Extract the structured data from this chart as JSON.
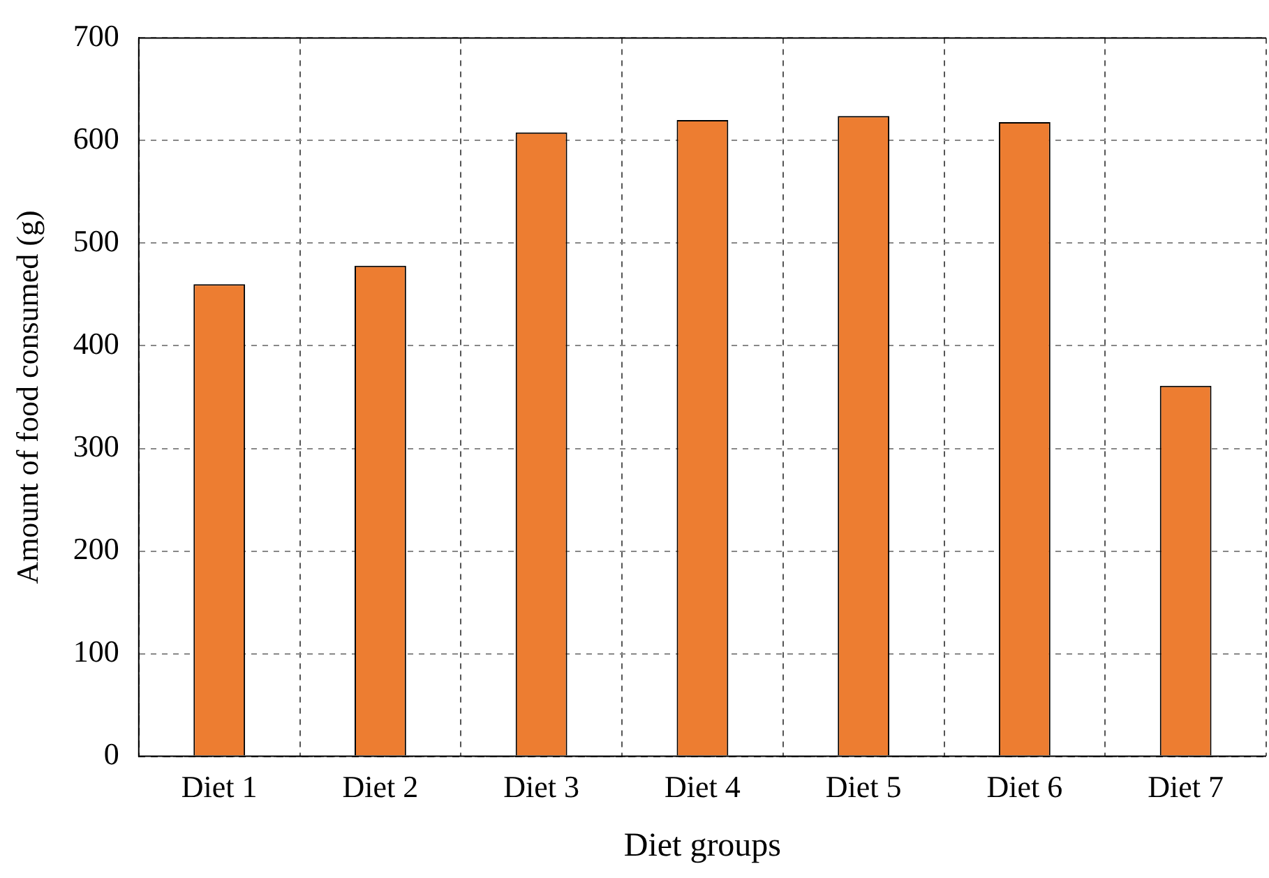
{
  "chart_data": {
    "type": "bar",
    "xlabel": "Diet groups",
    "ylabel": "Amount of food consumed (g)",
    "categories": [
      "Diet 1",
      "Diet 2",
      "Diet 3",
      "Diet 4",
      "Diet 5",
      "Diet 6",
      "Diet 7"
    ],
    "values": [
      460,
      478,
      608,
      620,
      624,
      618,
      361
    ],
    "color": "#ed7d31",
    "ylim": [
      0,
      700
    ],
    "yticks": [
      0,
      100,
      200,
      300,
      400,
      500,
      600,
      700
    ],
    "grid": true,
    "legend": false
  }
}
